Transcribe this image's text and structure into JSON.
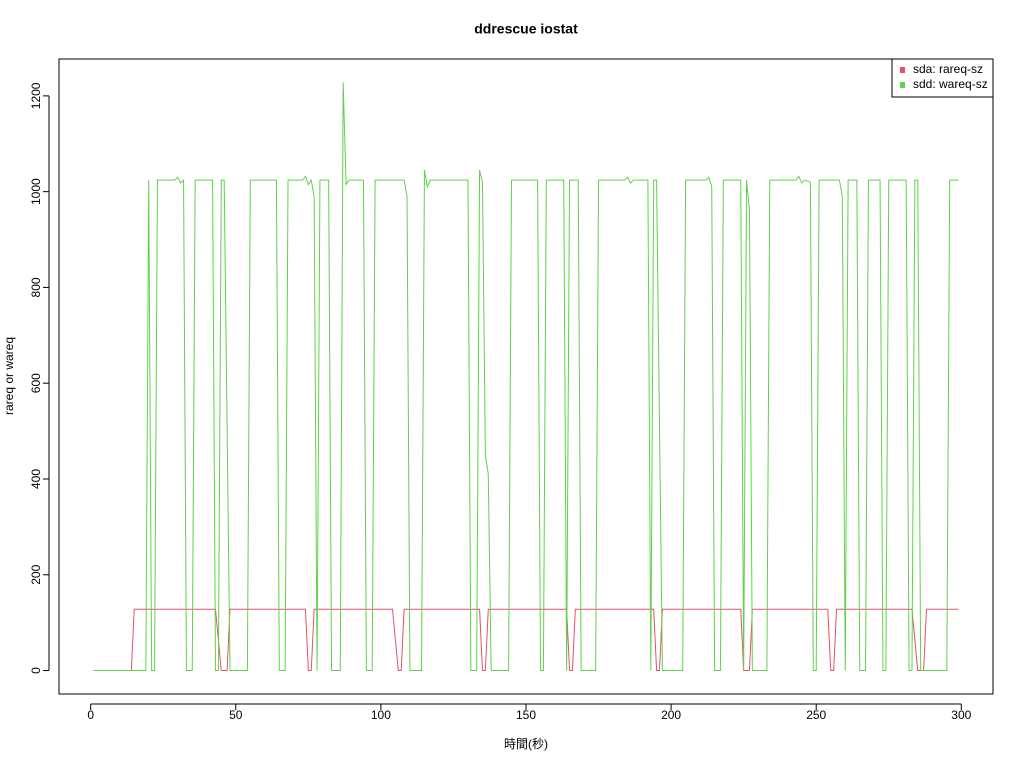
{
  "chart_data": {
    "type": "line",
    "title": "ddrescue iostat",
    "x_label": "時間(秒)",
    "y_label": "rareq or wareq",
    "xlim": [
      -10.92,
      310.92
    ],
    "ylim": [
      -49,
      1277
    ],
    "xticks": [
      0,
      50,
      100,
      150,
      200,
      250,
      300
    ],
    "yticks": [
      0,
      200,
      400,
      600,
      800,
      1000,
      1200
    ],
    "legend": "top-right",
    "series": [
      {
        "name": "sda: rareq-sz",
        "color": "#DF536B",
        "x": [
          1,
          14,
          15,
          43,
          45,
          47,
          48,
          74,
          75,
          76,
          77,
          104,
          106,
          107,
          108,
          134,
          135,
          136,
          137,
          164,
          165,
          166,
          167,
          194,
          195,
          196,
          197,
          224,
          225,
          227,
          228,
          254,
          255,
          256,
          257,
          283,
          285,
          287,
          288,
          299
        ],
        "values": [
          0,
          0,
          128,
          128,
          0,
          0,
          128,
          128,
          0,
          0,
          128,
          128,
          0,
          0,
          128,
          128,
          0,
          0,
          128,
          128,
          0,
          0,
          128,
          128,
          0,
          0,
          128,
          128,
          0,
          0,
          128,
          128,
          0,
          0,
          128,
          128,
          0,
          0,
          128,
          128
        ]
      },
      {
        "name": "sdd: wareq-sz",
        "color": "#61D04F",
        "x": [
          1,
          19,
          20,
          21,
          22,
          23,
          29,
          30,
          31,
          32,
          33,
          35,
          36,
          42,
          43,
          44,
          45,
          46,
          48,
          54,
          55,
          64,
          65,
          67,
          68,
          73,
          74,
          75,
          76,
          77,
          78,
          79,
          82,
          83,
          86,
          87,
          88,
          89,
          94,
          95,
          97,
          98,
          108,
          109,
          110,
          114,
          115,
          116,
          117,
          130,
          131,
          133,
          134,
          135,
          136,
          137,
          138,
          144,
          145,
          154,
          155,
          156,
          157,
          163,
          164,
          165,
          168,
          169,
          174,
          175,
          184,
          185,
          186,
          187,
          192,
          193,
          194,
          195,
          197,
          204,
          205,
          212,
          213,
          214,
          215,
          217,
          218,
          224,
          225,
          226,
          227,
          228,
          233,
          234,
          243,
          244,
          245,
          246,
          248,
          249,
          250,
          251,
          258,
          259,
          260,
          261,
          264,
          265,
          267,
          268,
          272,
          273,
          274,
          275,
          281,
          282,
          283,
          284,
          285,
          286,
          295,
          296,
          299
        ],
        "values": [
          0,
          0,
          1024,
          0,
          0,
          1024,
          1024,
          1030,
          1018,
          1024,
          0,
          0,
          1024,
          1024,
          0,
          0,
          1024,
          1024,
          0,
          0,
          1024,
          1024,
          0,
          0,
          1024,
          1024,
          1032,
          1015,
          1024,
          990,
          0,
          1024,
          1024,
          0,
          0,
          1228,
          1015,
          1024,
          1024,
          0,
          0,
          1024,
          1024,
          990,
          0,
          0,
          1045,
          1010,
          1024,
          1024,
          0,
          0,
          1045,
          1020,
          450,
          410,
          0,
          0,
          1024,
          1024,
          0,
          0,
          1024,
          1024,
          0,
          1024,
          1024,
          0,
          0,
          1024,
          1024,
          1030,
          1018,
          1024,
          1024,
          0,
          1024,
          1024,
          0,
          0,
          1024,
          1024,
          1030,
          1010,
          0,
          0,
          1024,
          1024,
          0,
          1024,
          960,
          0,
          0,
          1024,
          1024,
          1032,
          1018,
          1024,
          1020,
          0,
          0,
          1024,
          1024,
          990,
          0,
          1024,
          1024,
          0,
          0,
          1024,
          1024,
          0,
          0,
          1024,
          1024,
          0,
          0,
          1024,
          1024,
          0,
          0,
          1024,
          1024
        ]
      }
    ]
  }
}
